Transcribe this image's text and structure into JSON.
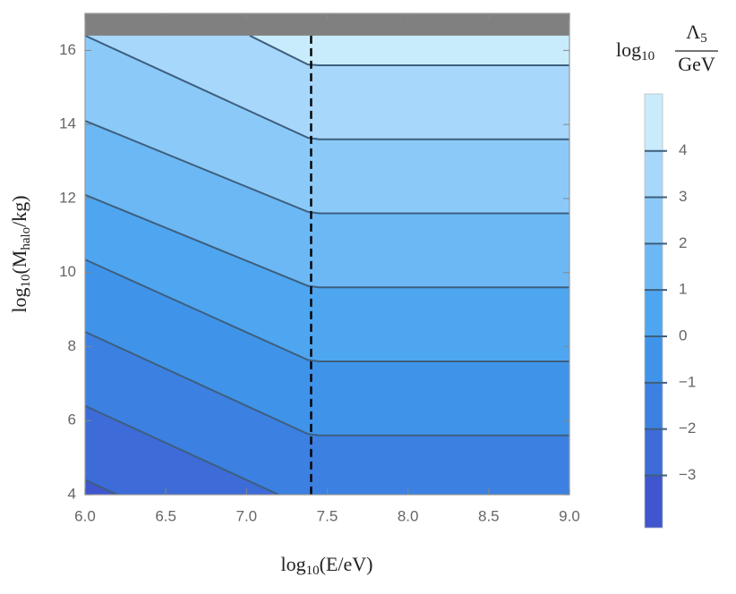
{
  "chart_data": {
    "type": "contour",
    "x_label": {
      "prefix": "log",
      "subscript": "10",
      "body": "(E/eV)"
    },
    "y_label": {
      "prefix": "log",
      "subscript": "10",
      "open": "(M",
      "subscript2": "halo",
      "close": "/kg)"
    },
    "xlim": [
      6,
      9
    ],
    "ylim": [
      4,
      17
    ],
    "xticks": [
      {
        "value": 6,
        "label": "6.0"
      },
      {
        "value": 6.5,
        "label": "6.5"
      },
      {
        "value": 7,
        "label": "7.0"
      },
      {
        "value": 7.5,
        "label": "7.5"
      },
      {
        "value": 8,
        "label": "8.0"
      },
      {
        "value": 8.5,
        "label": "8.5"
      },
      {
        "value": 9,
        "label": "9.0"
      }
    ],
    "yticks": [
      4,
      6,
      8,
      10,
      12,
      14,
      16
    ],
    "line_color": "#3e5f7e",
    "contours": [
      {
        "level": 4,
        "x": [
          7.02,
          7.38,
          7.45,
          9
        ],
        "y": [
          16.4,
          15.62,
          15.6,
          15.6
        ]
      },
      {
        "level": 3,
        "x": [
          6,
          7.38,
          7.45,
          9
        ],
        "y": [
          16.4,
          13.64,
          13.6,
          13.6
        ]
      },
      {
        "level": 2,
        "x": [
          6,
          7.38,
          7.45,
          9
        ],
        "y": [
          14.1,
          11.64,
          11.6,
          11.6
        ]
      },
      {
        "level": 1,
        "x": [
          6,
          7.38,
          7.45,
          9
        ],
        "y": [
          12.1,
          9.64,
          9.6,
          9.6
        ]
      },
      {
        "level": 0,
        "x": [
          6,
          7.38,
          7.45,
          9
        ],
        "y": [
          10.35,
          7.64,
          7.6,
          7.6
        ]
      },
      {
        "level": -1,
        "x": [
          6,
          7.38,
          7.45,
          9
        ],
        "y": [
          8.4,
          5.64,
          5.6,
          5.6
        ]
      },
      {
        "level": -2,
        "x": [
          6,
          7.2
        ],
        "y": [
          6.4,
          4
        ]
      },
      {
        "level": -3,
        "x": [
          6,
          6.2
        ],
        "y": [
          4.4,
          4
        ]
      }
    ],
    "fill_colors": [
      "#c9ecfd",
      "#a7d7fb",
      "#8bcaf8",
      "#6cb8f5",
      "#4ea6f1",
      "#3f94ea",
      "#3c80e2",
      "#3d6bd8",
      "#3f56cf"
    ],
    "excluded_band": {
      "ylim": [
        16.4,
        17
      ],
      "color": "#808080"
    },
    "vline": {
      "x": 7.4,
      "color": "#000000",
      "dashed": true
    },
    "colorbar": {
      "lim": [
        -4.13,
        5.23
      ],
      "ticks": [
        {
          "value": -3,
          "label": "−3"
        },
        {
          "value": -2,
          "label": "−2"
        },
        {
          "value": -1,
          "label": "−1"
        },
        0,
        1,
        2,
        3,
        4
      ],
      "title": {
        "prefix": "log",
        "subscript": "10",
        "numerator": "Λ",
        "numerator_sub": "5",
        "denominator": "GeV"
      }
    }
  }
}
